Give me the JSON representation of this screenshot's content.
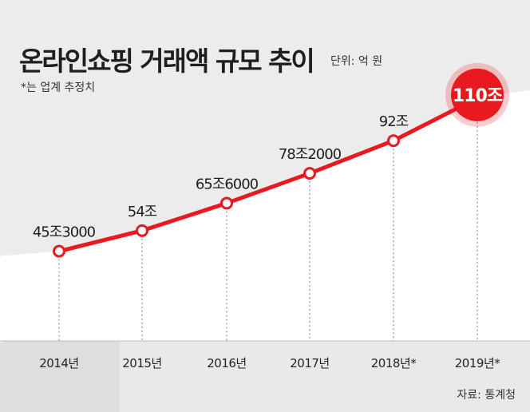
{
  "header": {
    "title": "온라인쇼핑 거래액 규모 추이",
    "unit": "단위: 억 원",
    "note": "*는 업계 추정치"
  },
  "footer": {
    "source": "자료: 통계청"
  },
  "colors": {
    "line": "#e8191f",
    "highlight": "#e8191f",
    "background": "#e9e9e9",
    "panel": "#ffffff",
    "text": "#1e1e1e"
  },
  "chart_data": {
    "type": "line",
    "categories": [
      "2014년",
      "2015년",
      "2016년",
      "2017년",
      "2018년*",
      "2019년*"
    ],
    "values": [
      453000,
      540000,
      656000,
      782000,
      920000,
      1100000
    ],
    "data_labels": [
      "45조3000",
      "54조",
      "65조6000",
      "78조2000",
      "92조",
      "110조"
    ],
    "highlight_index": 5,
    "ylim": [
      300000,
      1150000
    ],
    "grid": false,
    "title": "온라인쇼핑 거래액 규모 추이",
    "xlabel": "",
    "ylabel": ""
  }
}
